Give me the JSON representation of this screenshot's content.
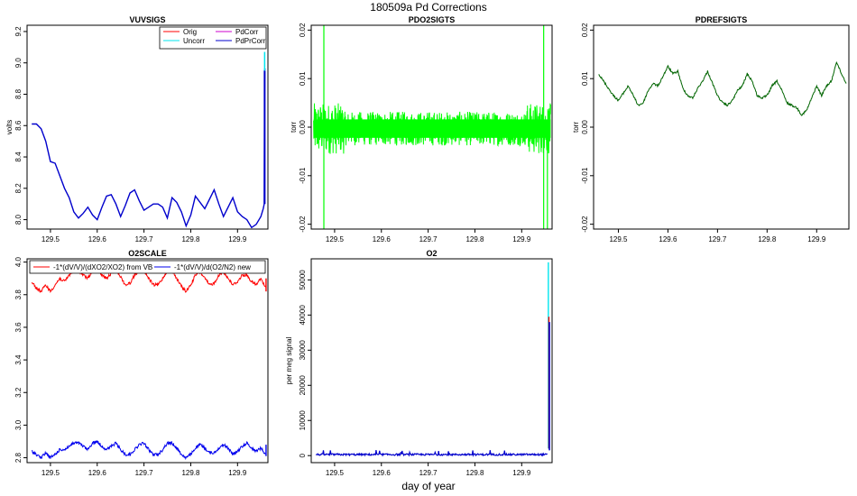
{
  "suptitle": "180509a   Pd Corrections",
  "xlabel_global": "day of year",
  "colors": {
    "orig": "#ff0000",
    "uncorr": "#00e5ee",
    "pdcorr": "#cc00cc",
    "pdprcorr": "#0000cc",
    "pdo2": "#00ff00",
    "pdref": "#006400",
    "o2scale_vb": "#ff0000",
    "o2scale_new": "#0000ee"
  },
  "chart_data": [
    {
      "id": "vuvsigs",
      "type": "line",
      "title": "VUVSIGS",
      "ylabel": "volts",
      "xlim": [
        129.45,
        129.965
      ],
      "ylim": [
        7.94,
        9.24
      ],
      "xticks": [
        129.5,
        129.6,
        129.7,
        129.8,
        129.9
      ],
      "xtick_labels": [
        "129.5",
        "129.6",
        "129.7",
        "129.8",
        "129.9"
      ],
      "yticks": [
        8.0,
        8.2,
        8.4,
        8.6,
        8.8,
        9.0,
        9.2
      ],
      "ytick_labels": [
        "8.0",
        "8.2",
        "8.4",
        "8.6",
        "8.8",
        "9.0",
        "9.2"
      ],
      "legend": [
        "Orig",
        "Uncorr",
        "PdCorr",
        "PdPrCorr"
      ],
      "legend_position": "top-right",
      "series": [
        {
          "name": "PdPrCorr",
          "x": [
            129.46,
            129.47,
            129.48,
            129.49,
            129.5,
            129.51,
            129.52,
            129.53,
            129.54,
            129.55,
            129.56,
            129.57,
            129.58,
            129.59,
            129.6,
            129.61,
            129.62,
            129.63,
            129.64,
            129.65,
            129.66,
            129.67,
            129.68,
            129.69,
            129.7,
            129.71,
            129.72,
            129.73,
            129.74,
            129.75,
            129.76,
            129.77,
            129.78,
            129.79,
            129.8,
            129.81,
            129.82,
            129.83,
            129.84,
            129.85,
            129.86,
            129.87,
            129.88,
            129.89,
            129.9,
            129.91,
            129.92,
            129.93,
            129.94,
            129.95,
            129.955,
            129.957,
            129.958,
            129.96
          ],
          "y": [
            8.61,
            8.61,
            8.58,
            8.5,
            8.37,
            8.36,
            8.28,
            8.2,
            8.14,
            8.05,
            8.01,
            8.04,
            8.08,
            8.03,
            8.0,
            8.08,
            8.15,
            8.16,
            8.1,
            8.02,
            8.09,
            8.17,
            8.19,
            8.12,
            8.06,
            8.08,
            8.1,
            8.1,
            8.08,
            8.01,
            8.14,
            8.11,
            8.05,
            7.96,
            8.03,
            8.15,
            8.11,
            8.07,
            8.13,
            8.19,
            8.1,
            8.02,
            8.08,
            8.14,
            8.05,
            8.02,
            8.0,
            7.95,
            7.97,
            8.02,
            8.07,
            8.1,
            8.96,
            8.96
          ]
        }
      ],
      "spike": {
        "x": 129.958,
        "y_uncorr": 9.07,
        "y_orig": 8.95
      }
    },
    {
      "id": "pdo2sigts",
      "type": "line",
      "title": "PDO2SIGTS",
      "ylabel": "torr",
      "xlim": [
        129.45,
        129.965
      ],
      "ylim": [
        -0.021,
        0.021
      ],
      "xticks": [
        129.5,
        129.6,
        129.7,
        129.8,
        129.9
      ],
      "xtick_labels": [
        "129.5",
        "129.6",
        "129.7",
        "129.8",
        "129.9"
      ],
      "yticks": [
        -0.02,
        -0.01,
        0.0,
        0.01,
        0.02
      ],
      "ytick_labels": [
        "-0.02",
        "-0.01",
        "0.00",
        "0.01",
        "0.02"
      ],
      "series": [
        {
          "name": "PDO2SIGTS",
          "x_start": 129.455,
          "x_end": 129.962,
          "mean": -0.0003,
          "noise_amplitude": 0.0035
        }
      ],
      "spikes": [
        {
          "x": 129.477,
          "y_top": 0.021,
          "y_bottom": -0.021
        },
        {
          "x": 129.947,
          "y_top": 0.021,
          "y_bottom": -0.021
        },
        {
          "x": 129.955,
          "y_top": 0.0,
          "y_bottom": -0.021
        }
      ]
    },
    {
      "id": "pdrefsigts",
      "type": "line",
      "title": "PDREFSIGTS",
      "ylabel": "torr",
      "xlim": [
        129.45,
        129.965
      ],
      "ylim": [
        -0.021,
        0.021
      ],
      "xticks": [
        129.5,
        129.6,
        129.7,
        129.8,
        129.9
      ],
      "xtick_labels": [
        "129.5",
        "129.6",
        "129.7",
        "129.8",
        "129.9"
      ],
      "yticks": [
        -0.02,
        -0.01,
        0.0,
        0.01,
        0.02
      ],
      "ytick_labels": [
        "-0.02",
        "-0.01",
        "0.00",
        "0.01",
        "0.02"
      ],
      "series": [
        {
          "name": "PDREFSIGTS",
          "x": [
            129.46,
            129.47,
            129.48,
            129.49,
            129.5,
            129.51,
            129.52,
            129.53,
            129.54,
            129.55,
            129.56,
            129.57,
            129.58,
            129.59,
            129.6,
            129.61,
            129.62,
            129.63,
            129.64,
            129.65,
            129.66,
            129.67,
            129.68,
            129.69,
            129.7,
            129.71,
            129.72,
            129.73,
            129.74,
            129.75,
            129.76,
            129.77,
            129.78,
            129.79,
            129.8,
            129.81,
            129.82,
            129.83,
            129.84,
            129.85,
            129.86,
            129.87,
            129.88,
            129.89,
            129.9,
            129.91,
            129.92,
            129.93,
            129.94,
            129.95,
            129.96
          ],
          "y": [
            0.011,
            0.0095,
            0.008,
            0.0065,
            0.0055,
            0.007,
            0.0085,
            0.0065,
            0.0045,
            0.005,
            0.0075,
            0.009,
            0.0085,
            0.0105,
            0.0125,
            0.011,
            0.0115,
            0.008,
            0.0065,
            0.006,
            0.008,
            0.0095,
            0.0115,
            0.009,
            0.0065,
            0.005,
            0.0045,
            0.0055,
            0.0075,
            0.0085,
            0.011,
            0.0095,
            0.0065,
            0.006,
            0.0065,
            0.0085,
            0.0095,
            0.0075,
            0.005,
            0.0045,
            0.004,
            0.0025,
            0.0035,
            0.006,
            0.0085,
            0.0065,
            0.0085,
            0.0095,
            0.0135,
            0.011,
            0.009
          ]
        }
      ]
    },
    {
      "id": "o2scale",
      "type": "line",
      "title": "O2SCALE",
      "xlim": [
        129.45,
        129.965
      ],
      "ylim": [
        2.77,
        4.02
      ],
      "xticks": [
        129.5,
        129.6,
        129.7,
        129.8,
        129.9
      ],
      "xtick_labels": [
        "129.5",
        "129.6",
        "129.7",
        "129.8",
        "129.9"
      ],
      "yticks": [
        2.8,
        3.0,
        3.2,
        3.4,
        3.6,
        3.8,
        4.0
      ],
      "ytick_labels": [
        "2.8",
        "3.0",
        "3.2",
        "3.4",
        "3.6",
        "3.8",
        "4.0"
      ],
      "legend": [
        "-1*(dV/V)/(dXO2/XO2) from VB",
        "-1*(dV/V)/d(O2/N2) new"
      ],
      "legend_position": "top",
      "series": [
        {
          "name": "-1*(dV/V)/(dXO2/XO2) from VB",
          "x": [
            129.46,
            129.47,
            129.48,
            129.49,
            129.5,
            129.51,
            129.52,
            129.53,
            129.54,
            129.55,
            129.56,
            129.57,
            129.58,
            129.59,
            129.6,
            129.61,
            129.62,
            129.63,
            129.64,
            129.65,
            129.66,
            129.67,
            129.68,
            129.69,
            129.7,
            129.71,
            129.72,
            129.73,
            129.74,
            129.75,
            129.76,
            129.77,
            129.78,
            129.79,
            129.8,
            129.81,
            129.82,
            129.83,
            129.84,
            129.85,
            129.86,
            129.87,
            129.88,
            129.89,
            129.9,
            129.91,
            129.92,
            129.93,
            129.94,
            129.95,
            129.96
          ],
          "y": [
            3.88,
            3.84,
            3.82,
            3.86,
            3.82,
            3.86,
            3.9,
            3.88,
            3.92,
            3.95,
            3.95,
            3.92,
            3.9,
            3.95,
            3.96,
            3.92,
            3.9,
            3.93,
            3.96,
            3.91,
            3.86,
            3.87,
            3.92,
            3.95,
            3.95,
            3.9,
            3.86,
            3.86,
            3.9,
            3.95,
            3.95,
            3.9,
            3.85,
            3.82,
            3.86,
            3.92,
            3.94,
            3.9,
            3.86,
            3.87,
            3.92,
            3.94,
            3.9,
            3.86,
            3.88,
            3.92,
            3.92,
            3.88,
            3.86,
            3.9,
            3.84
          ]
        },
        {
          "name": "-1*(dV/V)/d(O2/N2) new",
          "x": [
            129.46,
            129.47,
            129.48,
            129.49,
            129.5,
            129.51,
            129.52,
            129.53,
            129.54,
            129.55,
            129.56,
            129.57,
            129.58,
            129.59,
            129.6,
            129.61,
            129.62,
            129.63,
            129.64,
            129.65,
            129.66,
            129.67,
            129.68,
            129.69,
            129.7,
            129.71,
            129.72,
            129.73,
            129.74,
            129.75,
            129.76,
            129.77,
            129.78,
            129.79,
            129.8,
            129.81,
            129.82,
            129.83,
            129.84,
            129.85,
            129.86,
            129.87,
            129.88,
            129.89,
            129.9,
            129.91,
            129.92,
            129.93,
            129.94,
            129.95,
            129.96
          ],
          "y": [
            2.84,
            2.82,
            2.8,
            2.83,
            2.8,
            2.82,
            2.85,
            2.85,
            2.87,
            2.89,
            2.89,
            2.87,
            2.85,
            2.89,
            2.9,
            2.87,
            2.85,
            2.87,
            2.89,
            2.85,
            2.82,
            2.82,
            2.85,
            2.88,
            2.89,
            2.85,
            2.82,
            2.82,
            2.85,
            2.89,
            2.89,
            2.86,
            2.82,
            2.8,
            2.82,
            2.86,
            2.88,
            2.86,
            2.83,
            2.83,
            2.86,
            2.88,
            2.86,
            2.82,
            2.84,
            2.87,
            2.89,
            2.86,
            2.84,
            2.86,
            2.82
          ]
        }
      ]
    },
    {
      "id": "o2",
      "type": "line",
      "title": "O2",
      "ylabel": "per meg signal",
      "xlim": [
        129.45,
        129.965
      ],
      "ylim": [
        -2000,
        56000
      ],
      "xticks": [
        129.5,
        129.6,
        129.7,
        129.8,
        129.9
      ],
      "xtick_labels": [
        "129.5",
        "129.6",
        "129.7",
        "129.8",
        "129.9"
      ],
      "yticks": [
        0,
        10000,
        20000,
        30000,
        40000,
        50000
      ],
      "ytick_labels": [
        "0",
        "10000",
        "20000",
        "30000",
        "40000",
        "50000"
      ],
      "series": [
        {
          "name": "O2",
          "x": [
            129.46,
            129.47,
            129.48,
            129.49,
            129.5,
            129.52,
            129.55,
            129.58,
            129.6,
            129.62,
            129.65,
            129.68,
            129.7,
            129.72,
            129.75,
            129.78,
            129.8,
            129.82,
            129.85,
            129.88,
            129.9,
            129.92,
            129.94,
            129.95,
            129.955,
            129.956,
            129.957,
            129.958,
            129.96
          ],
          "y": [
            800,
            400,
            600,
            300,
            500,
            300,
            400,
            300,
            500,
            200,
            400,
            300,
            500,
            300,
            400,
            200,
            300,
            500,
            300,
            400,
            300,
            500,
            900,
            1200,
            800,
            2000,
            39000,
            1500,
            1200
          ]
        }
      ],
      "spike": {
        "x": 129.957,
        "y_uncorr": 55000,
        "y_orig": 39500
      }
    }
  ]
}
